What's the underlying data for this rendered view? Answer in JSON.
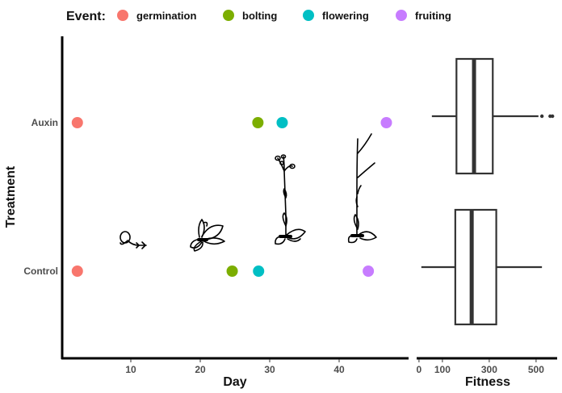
{
  "chart_data": [
    {
      "type": "scatter",
      "id": "timeline",
      "title": "",
      "xlabel": "Day",
      "ylabel": "Treatment",
      "xlim": [
        0,
        50
      ],
      "xticks": [
        10,
        20,
        30,
        40
      ],
      "categories": [
        "Control",
        "Auxin"
      ],
      "legend": {
        "title": "Event:",
        "placement": "top",
        "entries": [
          {
            "label": "germination",
            "color": "#F8766D"
          },
          {
            "label": "bolting",
            "color": "#7CAE00"
          },
          {
            "label": "flowering",
            "color": "#00BFC4"
          },
          {
            "label": "fruiting",
            "color": "#C77CFF"
          }
        ]
      },
      "series": [
        {
          "name": "germination",
          "color": "#F8766D",
          "points": [
            {
              "treatment": "Auxin",
              "day": 2.3
            },
            {
              "treatment": "Control",
              "day": 2.3
            }
          ]
        },
        {
          "name": "bolting",
          "color": "#7CAE00",
          "points": [
            {
              "treatment": "Auxin",
              "day": 28.3
            },
            {
              "treatment": "Control",
              "day": 24.6
            }
          ]
        },
        {
          "name": "flowering",
          "color": "#00BFC4",
          "points": [
            {
              "treatment": "Auxin",
              "day": 31.8
            },
            {
              "treatment": "Control",
              "day": 28.4
            }
          ]
        },
        {
          "name": "fruiting",
          "color": "#C77CFF",
          "points": [
            {
              "treatment": "Auxin",
              "day": 46.8
            },
            {
              "treatment": "Control",
              "day": 44.2
            }
          ]
        }
      ],
      "illustrations": [
        "seedling",
        "rosette",
        "flowering-plant",
        "fruiting-plant"
      ]
    },
    {
      "type": "box",
      "id": "fitness",
      "title": "",
      "xlabel": "Fitness",
      "xlim": [
        -10,
        590
      ],
      "xticks": [
        0,
        100,
        300,
        500
      ],
      "categories": [
        "Control",
        "Auxin"
      ],
      "boxes": [
        {
          "group": "Auxin",
          "whisker_low": 55,
          "q1": 160,
          "median": 235,
          "q3": 315,
          "whisker_high": 510,
          "outliers": [
            525,
            560,
            570
          ]
        },
        {
          "group": "Control",
          "whisker_low": 10,
          "q1": 155,
          "median": 225,
          "q3": 330,
          "whisker_high": 525,
          "outliers": []
        }
      ]
    }
  ]
}
